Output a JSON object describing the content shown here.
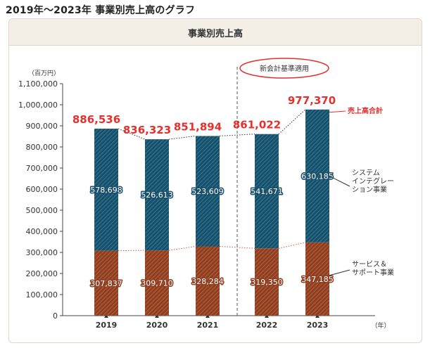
{
  "page_heading": "2019年～2023年 事業別売上高のグラフ",
  "panel_title": "事業別売上高",
  "colors": {
    "system": "#1a4f6a",
    "service": "#8e3f22",
    "total": "#e3312d"
  },
  "chart_data": {
    "type": "bar",
    "stacked": true,
    "categories": [
      "2019",
      "2020",
      "2021",
      "2022",
      "2023"
    ],
    "series": [
      {
        "name": "サービス＆\nサポート事業",
        "values": [
          307837,
          309710,
          328284,
          319350,
          347185
        ]
      },
      {
        "name": "システム\nインテグレー\nション事業",
        "values": [
          578698,
          526613,
          523609,
          541671,
          630185
        ]
      }
    ],
    "totals": [
      886536,
      836323,
      851894,
      861022,
      977370
    ],
    "totals_label": "売上高合計",
    "ylabel": "（百万円）",
    "xlabel": "（年）",
    "ylim": [
      0,
      1100000
    ],
    "yticks": [
      0,
      100000,
      200000,
      300000,
      400000,
      500000,
      600000,
      700000,
      800000,
      900000,
      1000000,
      1100000
    ],
    "annotation": "新会計基準適用",
    "grid": false
  }
}
